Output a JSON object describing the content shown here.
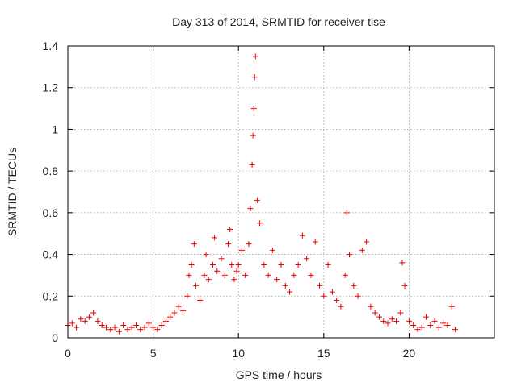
{
  "chart_data": {
    "type": "scatter",
    "title": "Day 313 of 2014, SRMTID for receiver tlse",
    "xlabel": "GPS time / hours",
    "ylabel": "SRMTID / TECUs",
    "xlim": [
      0,
      25
    ],
    "ylim": [
      0,
      1.4
    ],
    "xticks": [
      0,
      5,
      10,
      15,
      20
    ],
    "xtick_labels": [
      "0",
      "5",
      "10",
      "15",
      "20"
    ],
    "yticks": [
      0,
      0.2,
      0.4,
      0.6,
      0.8,
      1.0,
      1.2,
      1.4
    ],
    "ytick_labels": [
      "0",
      "0.2",
      "0.4",
      "0.6",
      "0.8",
      "1",
      "1.2",
      "1.4"
    ],
    "grid": true,
    "marker": "plus",
    "color": "#ee0000",
    "series": [
      {
        "name": "SRMTID",
        "x": [
          0.0,
          0.25,
          0.5,
          0.75,
          1.0,
          1.25,
          1.5,
          1.75,
          2.0,
          2.25,
          2.5,
          2.75,
          3.0,
          3.25,
          3.5,
          3.75,
          4.0,
          4.25,
          4.5,
          4.75,
          5.0,
          5.25,
          5.5,
          5.75,
          6.0,
          6.25,
          6.5,
          6.75,
          7.0,
          7.1,
          7.25,
          7.4,
          7.5,
          7.75,
          8.0,
          8.1,
          8.25,
          8.5,
          8.6,
          8.75,
          9.0,
          9.2,
          9.4,
          9.5,
          9.6,
          9.75,
          9.9,
          10.0,
          10.2,
          10.4,
          10.6,
          10.7,
          10.8,
          10.85,
          10.9,
          10.95,
          11.0,
          11.1,
          11.25,
          11.5,
          11.75,
          12.0,
          12.25,
          12.5,
          12.75,
          13.0,
          13.25,
          13.5,
          13.75,
          14.0,
          14.25,
          14.5,
          14.75,
          15.0,
          15.25,
          15.5,
          15.75,
          16.0,
          16.25,
          16.35,
          16.5,
          16.75,
          17.0,
          17.25,
          17.5,
          17.75,
          18.0,
          18.25,
          18.5,
          18.75,
          19.0,
          19.25,
          19.5,
          19.6,
          19.75,
          20.0,
          20.25,
          20.5,
          20.75,
          21.0,
          21.25,
          21.5,
          21.75,
          22.0,
          22.25,
          22.5,
          22.7
        ],
        "y": [
          0.06,
          0.07,
          0.05,
          0.09,
          0.08,
          0.1,
          0.12,
          0.08,
          0.06,
          0.05,
          0.04,
          0.05,
          0.03,
          0.06,
          0.04,
          0.05,
          0.06,
          0.04,
          0.05,
          0.07,
          0.05,
          0.04,
          0.06,
          0.08,
          0.1,
          0.12,
          0.15,
          0.13,
          0.2,
          0.3,
          0.35,
          0.45,
          0.25,
          0.18,
          0.3,
          0.4,
          0.28,
          0.35,
          0.48,
          0.32,
          0.38,
          0.3,
          0.45,
          0.52,
          0.35,
          0.28,
          0.32,
          0.35,
          0.42,
          0.3,
          0.45,
          0.62,
          0.83,
          0.97,
          1.1,
          1.25,
          1.35,
          0.66,
          0.55,
          0.35,
          0.3,
          0.42,
          0.28,
          0.35,
          0.25,
          0.22,
          0.3,
          0.35,
          0.49,
          0.38,
          0.3,
          0.46,
          0.25,
          0.2,
          0.35,
          0.22,
          0.18,
          0.15,
          0.3,
          0.6,
          0.4,
          0.25,
          0.2,
          0.42,
          0.46,
          0.15,
          0.12,
          0.1,
          0.08,
          0.07,
          0.09,
          0.08,
          0.12,
          0.36,
          0.25,
          0.08,
          0.06,
          0.04,
          0.05,
          0.1,
          0.06,
          0.08,
          0.05,
          0.07,
          0.06,
          0.15,
          0.04
        ]
      }
    ]
  }
}
